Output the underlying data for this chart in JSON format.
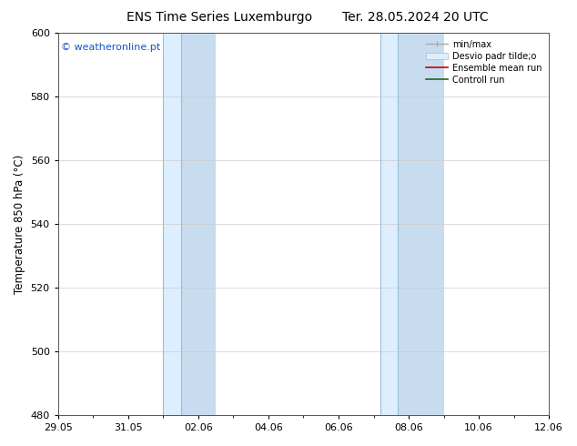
{
  "title_left": "ENS Time Series Luxemburgo",
  "title_right": "Ter. 28.05.2024 20 UTC",
  "ylabel": "Temperature 850 hPa (°C)",
  "ylim": [
    480,
    600
  ],
  "yticks": [
    480,
    500,
    520,
    540,
    560,
    580,
    600
  ],
  "xtick_labels": [
    "29.05",
    "31.05",
    "02.06",
    "04.06",
    "06.06",
    "08.06",
    "10.06",
    "12.06"
  ],
  "num_days": 14,
  "shaded_bands": [
    {
      "xmin": 3.0,
      "xmax": 4.0,
      "inner_xmin": 3.5,
      "inner_xmax": 4.0
    },
    {
      "xmin": 9.0,
      "xmax": 10.5,
      "inner_xmin": 9.5,
      "inner_xmax": 10.5
    }
  ],
  "shaded_outer_color": "#ddeeff",
  "shaded_inner_color": "#c8dcf0",
  "shaded_line_color": "#9bbcd8",
  "watermark_text": "© weatheronline.pt",
  "watermark_color": "#1155cc",
  "watermark_fontsize": 8,
  "legend_minmax_color": "#aaaaaa",
  "legend_std_color": "#ddeeff",
  "legend_std_edge": "#aabbcc",
  "legend_ens_color": "#cc0000",
  "legend_ctrl_color": "#226622",
  "background_color": "#ffffff",
  "title_fontsize": 10,
  "tick_fontsize": 8,
  "ylabel_fontsize": 8.5
}
